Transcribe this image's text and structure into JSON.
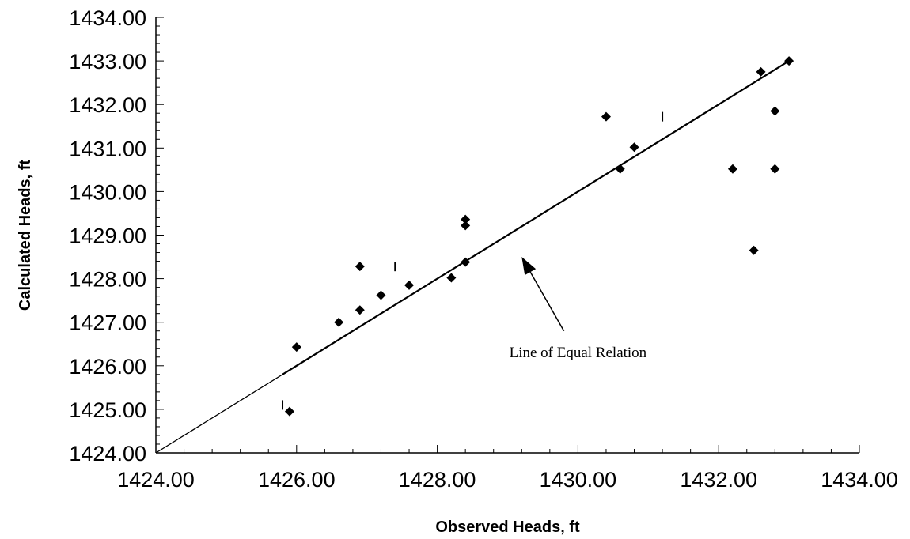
{
  "chart_data": {
    "type": "scatter",
    "title": "",
    "xlabel": "Observed Heads, ft",
    "ylabel": "Calculated Heads, ft",
    "xlim": [
      1424,
      1434
    ],
    "ylim": [
      1424,
      1434
    ],
    "x_ticks": [
      1424,
      1426,
      1428,
      1430,
      1432,
      1434
    ],
    "y_ticks": [
      1424,
      1425,
      1426,
      1427,
      1428,
      1429,
      1430,
      1431,
      1432,
      1433,
      1434
    ],
    "x_tick_labels": [
      "1424.00",
      "1426.00",
      "1428.00",
      "1430.00",
      "1432.00",
      "1434.00"
    ],
    "y_tick_labels": [
      "1424.00",
      "1425.00",
      "1426.00",
      "1427.00",
      "1428.00",
      "1429.00",
      "1430.00",
      "1431.00",
      "1432.00",
      "1433.00",
      "1434.00"
    ],
    "grid": false,
    "legend": "none",
    "series": [
      {
        "marker": "diamond",
        "color": "#000000",
        "x": [
          1425.9,
          1426.0,
          1426.6,
          1426.9,
          1426.9,
          1427.2,
          1427.6,
          1428.2,
          1428.4,
          1428.4,
          1428.4,
          1430.4,
          1430.6,
          1430.8,
          1432.2,
          1432.5,
          1432.6,
          1432.8,
          1432.8,
          1433.0
        ],
        "y": [
          1424.95,
          1426.43,
          1427.0,
          1427.28,
          1428.28,
          1427.62,
          1427.85,
          1428.02,
          1428.38,
          1429.22,
          1429.36,
          1431.72,
          1430.52,
          1431.02,
          1430.52,
          1428.65,
          1432.75,
          1431.85,
          1430.52,
          1433.0
        ]
      },
      {
        "marker": "vertical-tick",
        "color": "#000000",
        "x": [
          1425.8,
          1427.4,
          1431.2
        ],
        "y": [
          1425.1,
          1428.28,
          1431.72
        ]
      }
    ],
    "reference_lines": [
      {
        "name": "equal-relation-line",
        "from": [
          1424,
          1424
        ],
        "to": [
          1433,
          1433
        ]
      },
      {
        "name": "fit-line",
        "from": [
          1425.8,
          1425.8
        ],
        "to": [
          1433,
          1433
        ]
      }
    ],
    "annotations": [
      {
        "text": "Line of Equal Relation",
        "label_at": [
          1430.0,
          1426.2
        ],
        "arrow_from": [
          1429.8,
          1426.8
        ],
        "arrow_to": [
          1429.2,
          1428.5
        ]
      }
    ]
  }
}
